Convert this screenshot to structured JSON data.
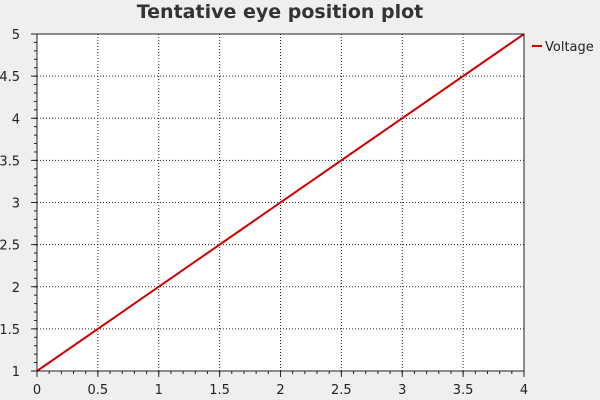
{
  "chart_data": {
    "type": "line",
    "title": "Tentative eye position plot",
    "xlabel": "",
    "ylabel": "",
    "xlim": [
      0,
      4
    ],
    "ylim": [
      1,
      5
    ],
    "x_ticks": [
      "0",
      "0.5",
      "1",
      "1.5",
      "2",
      "2.5",
      "3",
      "3.5",
      "4"
    ],
    "y_ticks": [
      "1",
      "1.5",
      "2",
      "2.5",
      "3",
      "3.5",
      "4",
      "4.5",
      "5"
    ],
    "grid": true,
    "legend_position": "top-right outside",
    "series": [
      {
        "name": "Voltage",
        "color": "#cc0000",
        "x": [
          0,
          4
        ],
        "y": [
          1,
          5
        ]
      }
    ]
  }
}
